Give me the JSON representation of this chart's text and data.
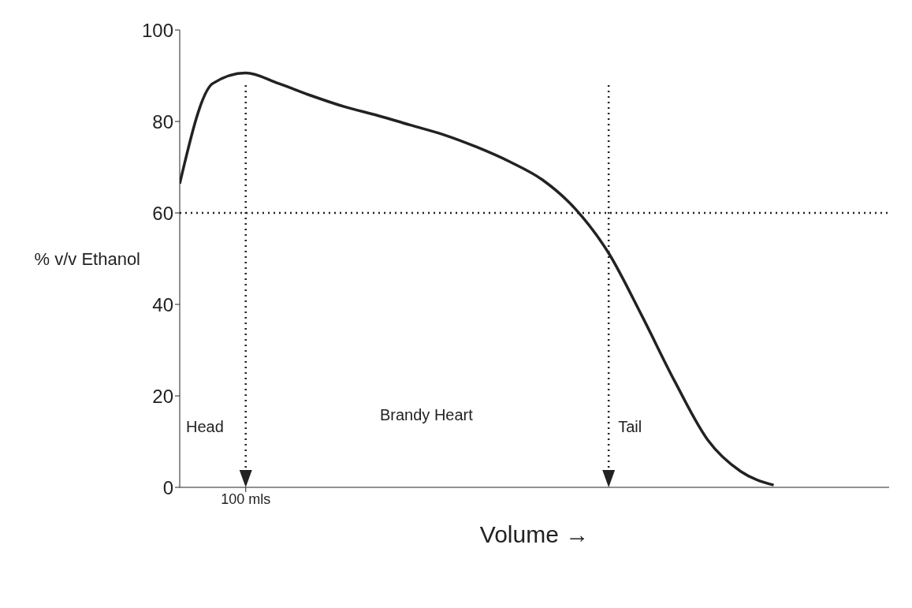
{
  "chart_data": {
    "type": "line",
    "xlabel": "Volume →",
    "ylabel": "% v/v Ethanol",
    "categories": [
      null,
      null,
      "100 mls",
      null,
      null,
      null,
      null,
      null,
      null,
      null,
      null,
      null,
      null,
      null,
      null,
      null,
      null,
      null,
      null,
      null,
      null,
      null
    ],
    "series": [
      {
        "color": "#222222",
        "values": [
          66.4,
          88.3,
          90.6,
          88.3,
          85.6,
          83.2,
          81.3,
          79.2,
          77.1,
          74.4,
          71.2,
          67.2,
          60.8,
          51.2,
          37.6,
          23.2,
          10.4,
          3.5,
          0.5,
          null,
          null,
          null
        ]
      }
    ],
    "ylim": [
      0,
      100
    ],
    "yticks": [
      0,
      20,
      40,
      60,
      80,
      100
    ],
    "ref_lines": [
      {
        "axis": "y",
        "value": 60,
        "line_style": "dotted",
        "color": "#222222"
      }
    ],
    "annotations": [
      "Head",
      "Brandy Heart",
      "Tail"
    ],
    "grid": false,
    "marker": "none",
    "line_style": "solid"
  }
}
